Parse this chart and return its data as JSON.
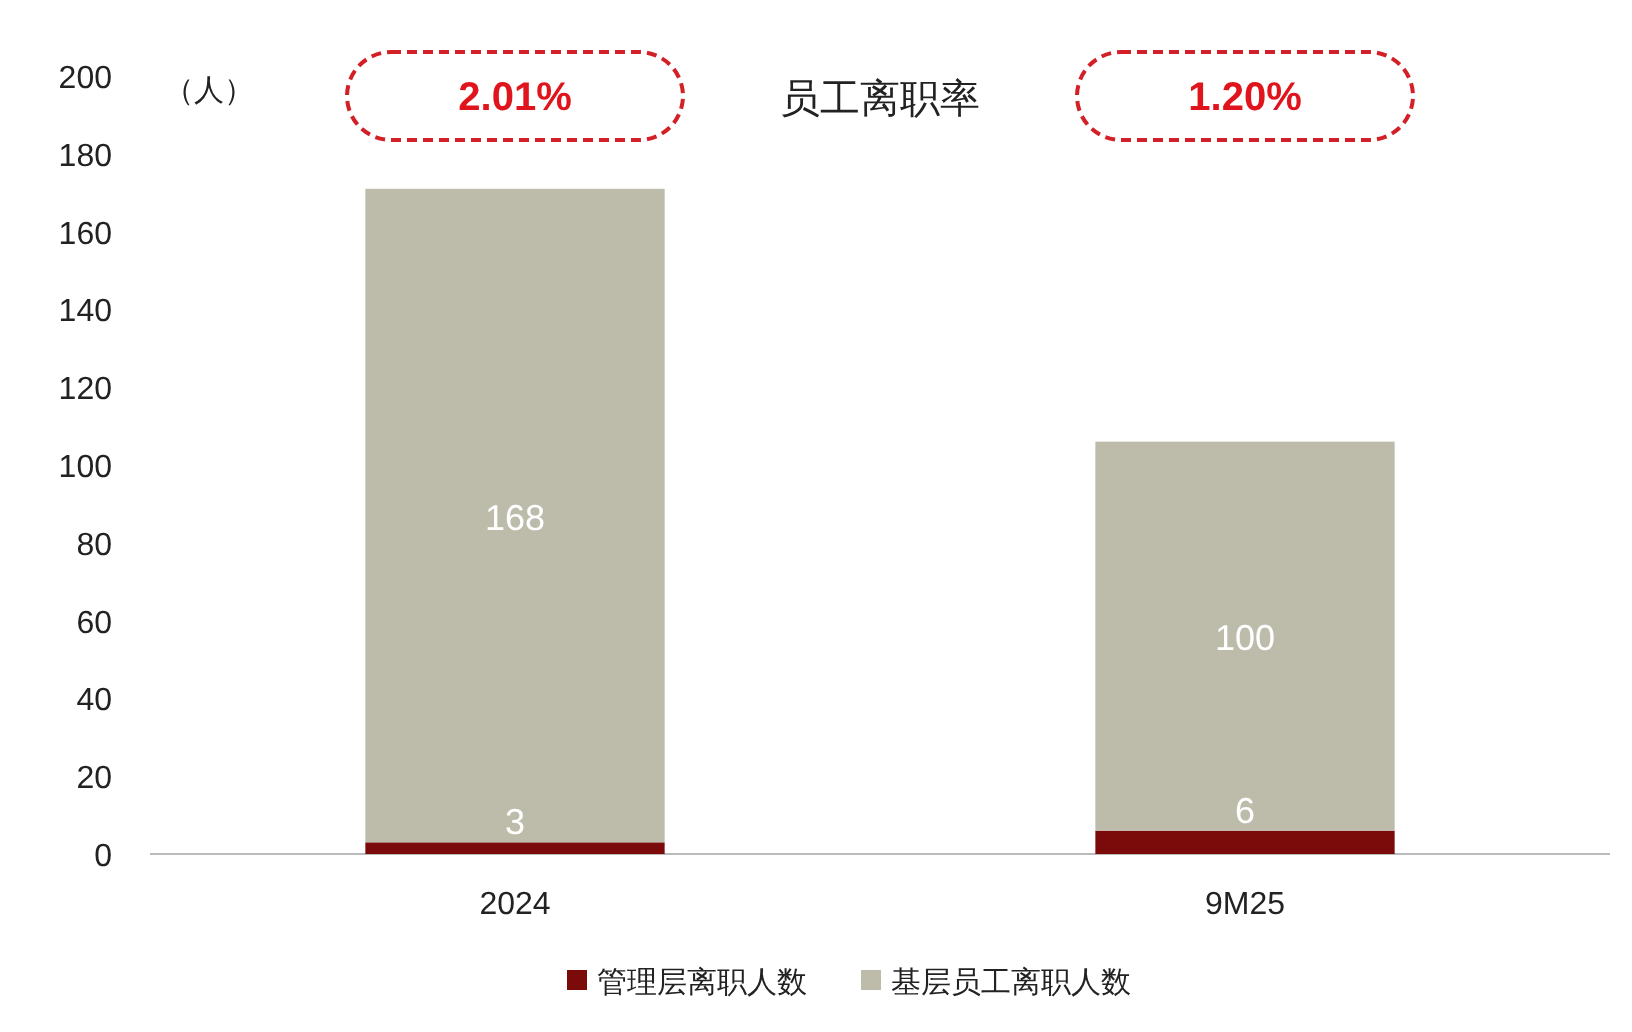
{
  "chart_data": {
    "type": "bar",
    "stacked": true,
    "categories": [
      "2024",
      "9M25"
    ],
    "series": [
      {
        "name": "管理层离职人数",
        "color": "#7b0a0a",
        "values": [
          3,
          6
        ]
      },
      {
        "name": "基层员工离职人数",
        "color": "#bdbcab",
        "values": [
          168,
          100
        ]
      }
    ],
    "ylim": [
      0,
      200
    ],
    "yticks": [
      0,
      20,
      40,
      60,
      80,
      100,
      120,
      140,
      160,
      180,
      200
    ],
    "ylabel": "（人）",
    "data_labels": true,
    "legend": "bottom",
    "grid": false,
    "annotations": [
      "2.01%",
      "员工离职率",
      "1.20%"
    ]
  }
}
